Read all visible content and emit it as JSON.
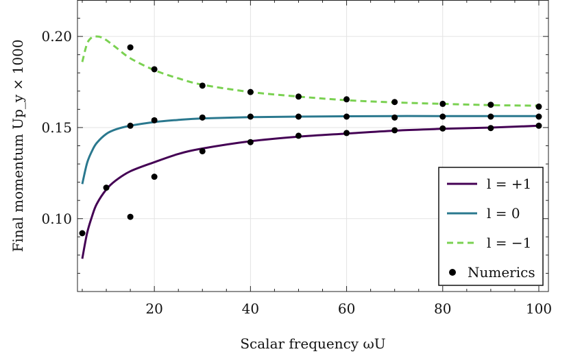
{
  "chart_data": {
    "type": "line",
    "xlabel": "Scalar frequency ωU",
    "ylabel": "Final momentum Up_y × 1000",
    "xlim": [
      4,
      102
    ],
    "ylim": [
      0.06,
      0.22
    ],
    "x_ticks": [
      20,
      40,
      60,
      80,
      100
    ],
    "y_ticks": [
      0.1,
      0.15,
      0.2
    ],
    "x_tick_labels": [
      "20",
      "40",
      "60",
      "80",
      "100"
    ],
    "y_tick_labels": [
      "0.10",
      "0.15",
      "0.20"
    ],
    "grid": true,
    "legend_position": "bottom-right",
    "series": [
      {
        "name": "l = +1",
        "style": "solid",
        "color": "#440154",
        "x": [
          5,
          6,
          7,
          8,
          10,
          12,
          15,
          20,
          25,
          30,
          40,
          50,
          60,
          70,
          80,
          90,
          100
        ],
        "y": [
          0.078,
          0.092,
          0.101,
          0.108,
          0.116,
          0.121,
          0.126,
          0.131,
          0.1355,
          0.1385,
          0.1425,
          0.145,
          0.1467,
          0.1483,
          0.1493,
          0.15,
          0.151
        ]
      },
      {
        "name": "l = 0",
        "style": "solid",
        "color": "#2a788e",
        "x": [
          5,
          6,
          7,
          8,
          10,
          12,
          15,
          20,
          25,
          30,
          40,
          50,
          60,
          70,
          80,
          90,
          100
        ],
        "y": [
          0.119,
          0.1305,
          0.137,
          0.1415,
          0.1465,
          0.149,
          0.151,
          0.153,
          0.1542,
          0.155,
          0.1557,
          0.156,
          0.1562,
          0.1563,
          0.1563,
          0.1563,
          0.1563
        ]
      },
      {
        "name": "l = −1",
        "style": "dashed",
        "color": "#7ad151",
        "x": [
          5,
          6,
          7,
          8,
          9,
          10,
          12,
          15,
          20,
          25,
          30,
          40,
          50,
          60,
          70,
          80,
          90,
          100
        ],
        "y": [
          0.186,
          0.196,
          0.1995,
          0.2,
          0.1995,
          0.198,
          0.194,
          0.188,
          0.1815,
          0.177,
          0.1735,
          0.1695,
          0.167,
          0.165,
          0.1638,
          0.163,
          0.1623,
          0.162
        ]
      },
      {
        "name": "Numerics",
        "style": "points",
        "color": "#000000",
        "points": [
          {
            "x": 5,
            "y": 0.092
          },
          {
            "x": 10,
            "y": 0.117
          },
          {
            "x": 15,
            "y": 0.194
          },
          {
            "x": 15,
            "y": 0.151
          },
          {
            "x": 15,
            "y": 0.101
          },
          {
            "x": 20,
            "y": 0.182
          },
          {
            "x": 20,
            "y": 0.154
          },
          {
            "x": 20,
            "y": 0.123
          },
          {
            "x": 30,
            "y": 0.173
          },
          {
            "x": 30,
            "y": 0.1555
          },
          {
            "x": 30,
            "y": 0.137
          },
          {
            "x": 40,
            "y": 0.1695
          },
          {
            "x": 40,
            "y": 0.156
          },
          {
            "x": 40,
            "y": 0.142
          },
          {
            "x": 50,
            "y": 0.167
          },
          {
            "x": 50,
            "y": 0.156
          },
          {
            "x": 50,
            "y": 0.1455
          },
          {
            "x": 60,
            "y": 0.1655
          },
          {
            "x": 60,
            "y": 0.156
          },
          {
            "x": 60,
            "y": 0.147
          },
          {
            "x": 70,
            "y": 0.164
          },
          {
            "x": 70,
            "y": 0.1555
          },
          {
            "x": 70,
            "y": 0.1485
          },
          {
            "x": 80,
            "y": 0.163
          },
          {
            "x": 80,
            "y": 0.156
          },
          {
            "x": 80,
            "y": 0.1495
          },
          {
            "x": 90,
            "y": 0.1625
          },
          {
            "x": 90,
            "y": 0.156
          },
          {
            "x": 90,
            "y": 0.1497
          },
          {
            "x": 100,
            "y": 0.1615
          },
          {
            "x": 100,
            "y": 0.156
          },
          {
            "x": 100,
            "y": 0.151
          }
        ]
      }
    ]
  }
}
